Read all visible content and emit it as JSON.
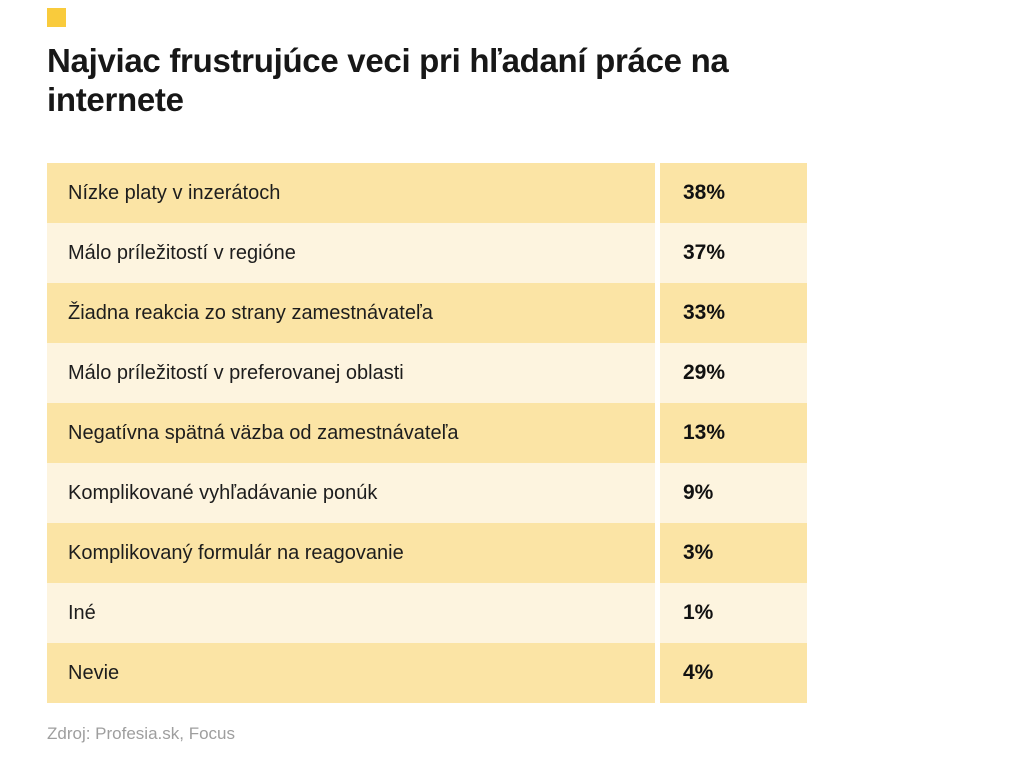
{
  "title": "Najviac frustrujúce veci pri hľadaní práce na internete",
  "source": "Zdroj: Profesia.sk, Focus",
  "accent_color": "#F9CB3C",
  "row_colors": {
    "dark": "#FBE4A5",
    "light": "#FDF4DF"
  },
  "rows": [
    {
      "label": "Nízke platy v inzerátoch",
      "value": "38%"
    },
    {
      "label": "Málo príležitostí v regióne",
      "value": "37%"
    },
    {
      "label": "Žiadna reakcia zo strany zamestnávateľa",
      "value": "33%"
    },
    {
      "label": "Málo príležitostí v preferovanej oblasti",
      "value": "29%"
    },
    {
      "label": "Negatívna spätná väzba od zamestnávateľa",
      "value": "13%"
    },
    {
      "label": "Komplikované vyhľadávanie ponúk",
      "value": "9%"
    },
    {
      "label": "Komplikovaný formulár na reagovanie",
      "value": "3%"
    },
    {
      "label": "Iné",
      "value": "1%"
    },
    {
      "label": "Nevie",
      "value": "4%"
    }
  ],
  "chart_data": {
    "type": "table",
    "title": "Najviac frustrujúce veci pri hľadaní práce na internete",
    "categories": [
      "Nízke platy v inzerátoch",
      "Málo príležitostí v regióne",
      "Žiadna reakcia zo strany zamestnávateľa",
      "Málo príležitostí v preferovanej oblasti",
      "Negatívna spätná väzba od zamestnávateľa",
      "Komplikované vyhľadávanie ponúk",
      "Komplikovaný formulár na reagovanie",
      "Iné",
      "Nevie"
    ],
    "values": [
      38,
      37,
      33,
      29,
      13,
      9,
      3,
      1,
      4
    ],
    "unit": "%",
    "source": "Zdroj: Profesia.sk, Focus",
    "legend": "none",
    "grid": "off"
  }
}
